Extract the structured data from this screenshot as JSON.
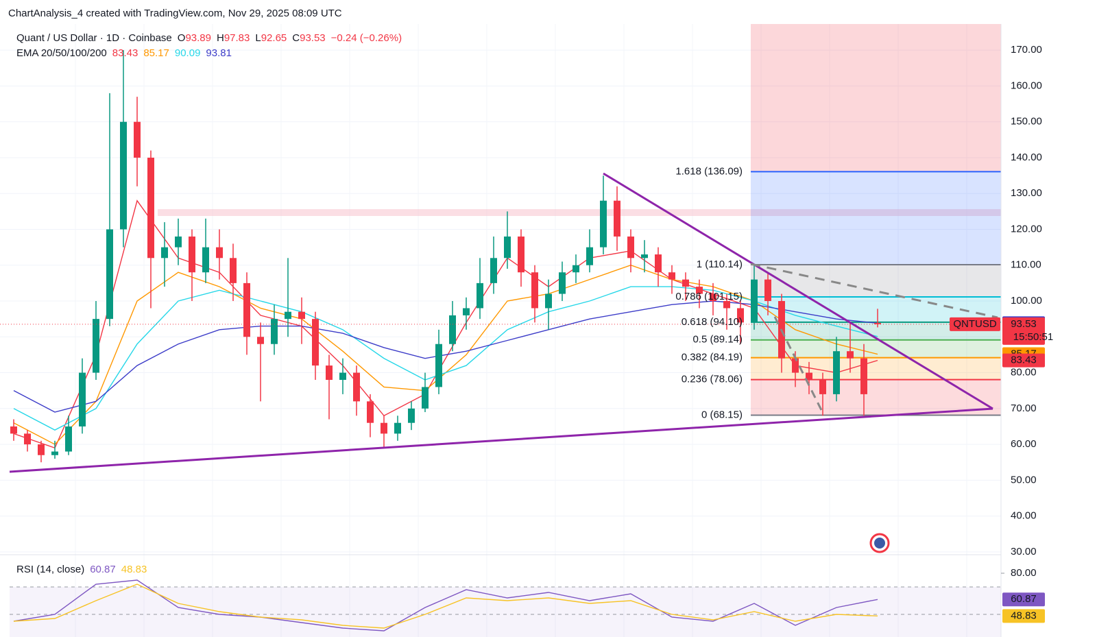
{
  "header": "ChartAnalysis_4 created with TradingView.com, Nov 29, 2025 08:09 UTC",
  "chart_data": {
    "type": "candlestick",
    "title": "Quant / US Dollar · 1D · Coinbase",
    "ohlc_labels": [
      "O",
      "H",
      "L",
      "C"
    ],
    "change": "−0.24 (−0.26%)",
    "up_color": "#089981",
    "down_color": "#f23645",
    "candles": [
      [
        65,
        67,
        61,
        63
      ],
      [
        63,
        64,
        58,
        60
      ],
      [
        60,
        61,
        55,
        57
      ],
      [
        57,
        61,
        56,
        58
      ],
      [
        58,
        68,
        57,
        65
      ],
      [
        65,
        84,
        63,
        80
      ],
      [
        80,
        100,
        78,
        95
      ],
      [
        95,
        158,
        93,
        120
      ],
      [
        120,
        170,
        115,
        150
      ],
      [
        150,
        157,
        132,
        140
      ],
      [
        140,
        142,
        98,
        112
      ],
      [
        112,
        122,
        104,
        115
      ],
      [
        115,
        123,
        110,
        118
      ],
      [
        118,
        120,
        100,
        108
      ],
      [
        108,
        123,
        105,
        115
      ],
      [
        115,
        120,
        106,
        112
      ],
      [
        112,
        116,
        100,
        105
      ],
      [
        105,
        108,
        85,
        90
      ],
      [
        90,
        94,
        72,
        88
      ],
      [
        88,
        99,
        85,
        95
      ],
      [
        95,
        112,
        90,
        97
      ],
      [
        97,
        101,
        88,
        95
      ],
      [
        95,
        97,
        78,
        82
      ],
      [
        82,
        85,
        67,
        78
      ],
      [
        78,
        84,
        74,
        80
      ],
      [
        80,
        82,
        68,
        72
      ],
      [
        72,
        74,
        62,
        66
      ],
      [
        66,
        68,
        59,
        63
      ],
      [
        63,
        68,
        61,
        66
      ],
      [
        66,
        72,
        64,
        70
      ],
      [
        70,
        80,
        69,
        76
      ],
      [
        76,
        92,
        74,
        88
      ],
      [
        88,
        100,
        86,
        96
      ],
      [
        96,
        101,
        92,
        98
      ],
      [
        98,
        112,
        95,
        105
      ],
      [
        105,
        118,
        102,
        112
      ],
      [
        112,
        125,
        109,
        118
      ],
      [
        118,
        120,
        104,
        108
      ],
      [
        108,
        110,
        94,
        98
      ],
      [
        98,
        106,
        92,
        102
      ],
      [
        102,
        111,
        100,
        108
      ],
      [
        108,
        113,
        105,
        110
      ],
      [
        110,
        120,
        108,
        115
      ],
      [
        115,
        135,
        113,
        128
      ],
      [
        128,
        132,
        114,
        118
      ],
      [
        118,
        120,
        108,
        112
      ],
      [
        112,
        117,
        108,
        113
      ],
      [
        113,
        115,
        104,
        108
      ],
      [
        108,
        110,
        102,
        106
      ],
      [
        106,
        108,
        100,
        104
      ],
      [
        104,
        106,
        98,
        102
      ],
      [
        102,
        105,
        96,
        100
      ],
      [
        100,
        102,
        92,
        98
      ],
      [
        98,
        100,
        88,
        94
      ],
      [
        94,
        110,
        92,
        106
      ],
      [
        106,
        108,
        96,
        100
      ],
      [
        100,
        102,
        80,
        84
      ],
      [
        84,
        86,
        76,
        80
      ],
      [
        80,
        83,
        74,
        78
      ],
      [
        78,
        80,
        68,
        74
      ],
      [
        74,
        90,
        72,
        86
      ],
      [
        86,
        94,
        80,
        84
      ],
      [
        84,
        88,
        68,
        74
      ],
      [
        93.89,
        97.83,
        92.65,
        93.53
      ]
    ],
    "ylim": [
      29.4,
      177.3
    ],
    "yticks": [
      {
        "value": 30,
        "label": "30.00"
      },
      {
        "value": 40,
        "label": "40.00"
      },
      {
        "value": 50,
        "label": "50.00"
      },
      {
        "value": 60,
        "label": "60.00"
      },
      {
        "value": 70,
        "label": "70.00"
      },
      {
        "value": 80,
        "label": "80.00"
      },
      {
        "value": 90,
        "label": "90.00"
      },
      {
        "value": 100,
        "label": "100.00"
      },
      {
        "value": 110,
        "label": "110.00"
      },
      {
        "value": 120,
        "label": "120.00"
      },
      {
        "value": 130,
        "label": "130.00"
      },
      {
        "value": 140,
        "label": "140.00"
      },
      {
        "value": 150,
        "label": "150.00"
      },
      {
        "value": 160,
        "label": "160.00"
      },
      {
        "value": 170,
        "label": "170.00"
      }
    ],
    "symbol": "QNTUSD",
    "countdown": "15:50:51",
    "ema": {
      "title": "EMA 20/50/100/200",
      "series": [
        {
          "name": "20",
          "color": "#f23645",
          "values": [
            63,
            59,
            85,
            128,
            112,
            108,
            96,
            93,
            82,
            68,
            74,
            94,
            112,
            104,
            112,
            114,
            106,
            102,
            98,
            82,
            80,
            83.43
          ]
        },
        {
          "name": "50",
          "color": "#ff9800",
          "values": [
            66,
            60,
            72,
            100,
            108,
            104,
            98,
            95,
            86,
            76,
            75,
            85,
            100,
            102,
            106,
            110,
            106,
            104,
            100,
            92,
            88,
            85.17
          ]
        },
        {
          "name": "100",
          "color": "#26d7e8",
          "values": [
            70,
            64,
            70,
            88,
            100,
            103,
            100,
            97,
            92,
            84,
            78,
            82,
            92,
            97,
            100,
            104,
            104,
            103,
            100,
            96,
            93,
            90.09
          ]
        },
        {
          "name": "200",
          "color": "#3c3cc8",
          "values": [
            75,
            69,
            72,
            82,
            88,
            92,
            93,
            93,
            91,
            87,
            84,
            86,
            89,
            92,
            95,
            97,
            99,
            100,
            99,
            97,
            95,
            93.81
          ]
        }
      ]
    },
    "fib": [
      {
        "value": 136.09,
        "label": "1.618 (136.09)",
        "color": "#2962ff"
      },
      {
        "value": 110.14,
        "label": "1 (110.14)",
        "color": "#787b86"
      },
      {
        "value": 101.15,
        "label": "0.786 (101.15)",
        "color": "#00bcd4"
      },
      {
        "value": 94.1,
        "label": "0.618 (94.10)",
        "color": "#089981"
      },
      {
        "value": 89.14,
        "label": "0.5 (89.14)",
        "color": "#4caf50"
      },
      {
        "value": 84.19,
        "label": "0.382 (84.19)",
        "color": "#ff9800"
      },
      {
        "value": 78.06,
        "label": "0.236 (78.06)",
        "color": "#f23645"
      },
      {
        "value": 68.15,
        "label": "0 (68.15)",
        "color": "#787b86"
      }
    ],
    "rsi": {
      "title": "RSI (14, close)",
      "ylim": [
        43,
        92
      ],
      "yticks": [
        {
          "value": 80,
          "label": "80.00"
        }
      ],
      "levels": [
        70,
        50
      ],
      "series": [
        {
          "name": "RSI",
          "color": "#7e57c2",
          "values": [
            45,
            50,
            72,
            75,
            55,
            50,
            48,
            44,
            40,
            38,
            55,
            68,
            62,
            66,
            60,
            65,
            48,
            45,
            58,
            42,
            55,
            60.87
          ]
        },
        {
          "name": "MA",
          "color": "#f7c325",
          "values": [
            45,
            47,
            60,
            72,
            58,
            52,
            48,
            46,
            42,
            40,
            50,
            62,
            60,
            62,
            58,
            60,
            50,
            46,
            52,
            45,
            50,
            48.83
          ]
        }
      ]
    }
  }
}
